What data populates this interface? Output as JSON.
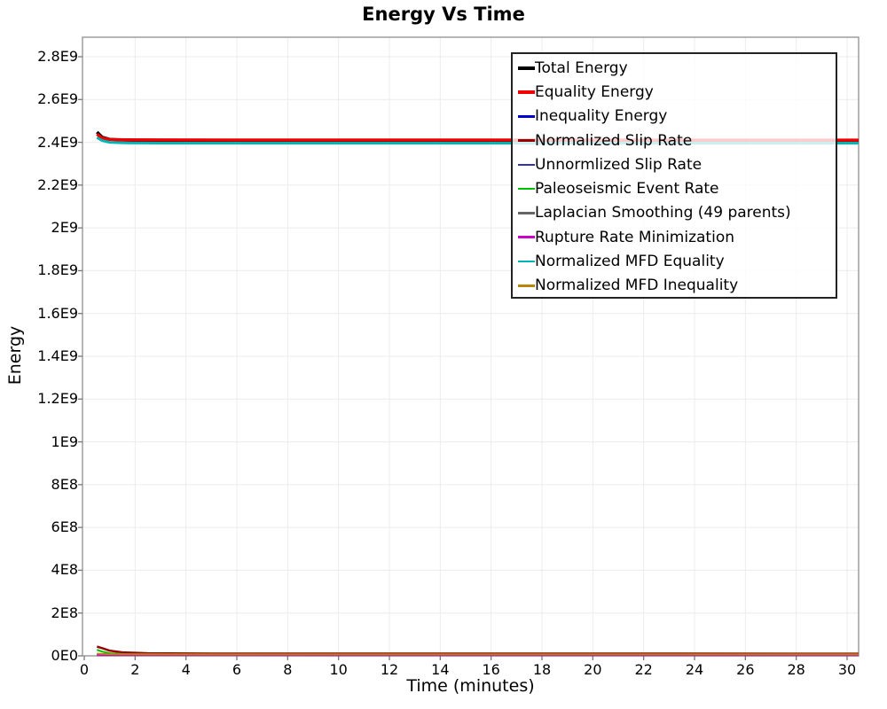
{
  "title": "Energy Vs Time",
  "x_axis": {
    "label": "Time (minutes)"
  },
  "y_axis": {
    "label": "Energy"
  },
  "chart_data": {
    "type": "line",
    "title": "Energy Vs Time",
    "xlabel": "Time (minutes)",
    "ylabel": "Energy",
    "xlim": [
      0,
      30.45
    ],
    "ylim": [
      0,
      2890000000
    ],
    "grid": true,
    "legend_position": "top-right-inside",
    "x_ticks": [
      0,
      2,
      4,
      6,
      8,
      10,
      12,
      14,
      16,
      18,
      20,
      22,
      24,
      26,
      28,
      30
    ],
    "y_ticks": [
      {
        "value": 0,
        "label": "0E0"
      },
      {
        "value": 200000000,
        "label": "2E8"
      },
      {
        "value": 400000000,
        "label": "4E8"
      },
      {
        "value": 600000000,
        "label": "6E8"
      },
      {
        "value": 800000000,
        "label": "8E8"
      },
      {
        "value": 1000000000,
        "label": "1E9"
      },
      {
        "value": 1200000000,
        "label": "1.2E9"
      },
      {
        "value": 1400000000,
        "label": "1.4E9"
      },
      {
        "value": 1600000000,
        "label": "1.6E9"
      },
      {
        "value": 1800000000,
        "label": "1.8E9"
      },
      {
        "value": 2000000000,
        "label": "2E9"
      },
      {
        "value": 2200000000,
        "label": "2.2E9"
      },
      {
        "value": 2400000000,
        "label": "2.4E9"
      },
      {
        "value": 2600000000,
        "label": "2.6E9"
      },
      {
        "value": 2800000000,
        "label": "2.8E9"
      }
    ],
    "series": [
      {
        "name": "Total Energy",
        "color": "#000000",
        "width": 3.5,
        "swatch": 4,
        "points": [
          [
            0.5,
            2448000000
          ],
          [
            0.7,
            2424000000
          ],
          [
            1.0,
            2414000000
          ],
          [
            1.6,
            2410000000
          ],
          [
            3,
            2408000000
          ],
          [
            6,
            2407000000
          ],
          [
            30.45,
            2407000000
          ]
        ]
      },
      {
        "name": "Equality Energy",
        "color": "#EE0000",
        "width": 3.5,
        "swatch": 4,
        "points": [
          [
            0.5,
            2438000000
          ],
          [
            0.7,
            2420000000
          ],
          [
            1.0,
            2413000000
          ],
          [
            1.6,
            2411500000
          ],
          [
            3,
            2411000000
          ],
          [
            30.45,
            2410000000
          ]
        ]
      },
      {
        "name": "Inequality Energy",
        "color": "#0000CC",
        "width": 2,
        "swatch": 3,
        "points": [
          [
            0.5,
            9000000
          ],
          [
            1.0,
            5000000
          ],
          [
            3,
            4000000
          ],
          [
            30.45,
            4000000
          ]
        ]
      },
      {
        "name": "Normalized Slip Rate",
        "color": "#990000",
        "width": 2.5,
        "swatch": 3,
        "points": [
          [
            0.5,
            43000000
          ],
          [
            0.7,
            36000000
          ],
          [
            1.0,
            24000000
          ],
          [
            1.5,
            16000000
          ],
          [
            2.5,
            12000000
          ],
          [
            5,
            10500000
          ],
          [
            30.45,
            10000000
          ]
        ]
      },
      {
        "name": "Unnormlized Slip Rate",
        "color": "#3333AA",
        "width": 2,
        "swatch": 2,
        "points": [
          [
            0.5,
            6000000
          ],
          [
            1.0,
            4000000
          ],
          [
            30.45,
            3500000
          ]
        ]
      },
      {
        "name": "Paleoseismic Event Rate",
        "color": "#00C000",
        "width": 2,
        "swatch": 2.5,
        "points": [
          [
            0.5,
            28000000
          ],
          [
            0.7,
            20000000
          ],
          [
            1.0,
            12000000
          ],
          [
            1.6,
            8000000
          ],
          [
            3,
            7000000
          ],
          [
            30.45,
            6500000
          ]
        ]
      },
      {
        "name": "Laplacian Smoothing (49 parents)",
        "color": "#666666",
        "width": 2,
        "swatch": 2.5,
        "points": [
          [
            0.5,
            7000000
          ],
          [
            1.0,
            5000000
          ],
          [
            30.45,
            4500000
          ]
        ]
      },
      {
        "name": "Rupture Rate Minimization",
        "color": "#CC00CC",
        "width": 2,
        "swatch": 2.5,
        "points": [
          [
            0.5,
            3000000
          ],
          [
            30.45,
            2500000
          ]
        ]
      },
      {
        "name": "Normalized MFD Equality",
        "color": "#00B5B5",
        "width": 3,
        "swatch": 2.5,
        "points": [
          [
            0.5,
            2422000000
          ],
          [
            0.7,
            2408000000
          ],
          [
            1.0,
            2400000000
          ],
          [
            1.6,
            2397000000
          ],
          [
            3,
            2396000000
          ],
          [
            30.45,
            2396000000
          ]
        ]
      },
      {
        "name": "Normalized MFD Inequality",
        "color": "#B8860B",
        "width": 2,
        "swatch": 2.5,
        "points": [
          [
            0.5,
            10000000
          ],
          [
            1.0,
            8000000
          ],
          [
            2,
            7000000
          ],
          [
            30.45,
            6500000
          ]
        ]
      }
    ]
  }
}
